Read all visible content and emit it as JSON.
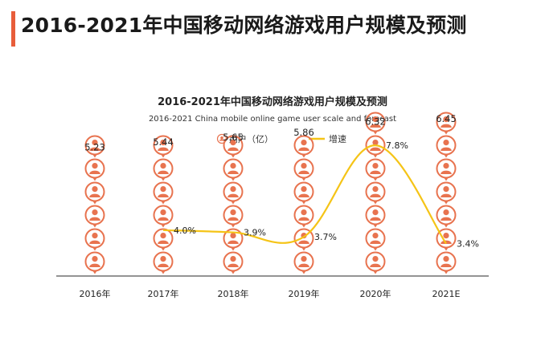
{
  "page": {
    "title": "2016-2021年中国移动网络游戏用户规模及预测"
  },
  "colors": {
    "accent": "#e85d3a",
    "icon": "#e8734f",
    "line": "#f5c417",
    "axis": "#555555"
  },
  "chart_data": {
    "type": "bar",
    "title": "2016-2021年中国移动网络游戏用户规模及预测",
    "subtitle": "2016-2021 China mobile online game user scale and forecast",
    "categories": [
      "2016年",
      "2017年",
      "2018年",
      "2019年",
      "2020年",
      "2021E"
    ],
    "legend": {
      "placement": "top-center",
      "items": [
        "用户（亿）",
        "增速"
      ]
    },
    "series": [
      {
        "name": "用户（亿）",
        "type": "pictograph",
        "icon": "user-avatar-icon",
        "values": [
          5.23,
          5.44,
          5.65,
          5.86,
          6.32,
          6.45
        ],
        "labels": [
          "5.23",
          "5.44",
          "5.65",
          "5.86",
          "6.32",
          "6.45"
        ]
      },
      {
        "name": "增速",
        "type": "line",
        "values": [
          null,
          4.0,
          3.9,
          3.7,
          7.8,
          3.4
        ],
        "labels": [
          "",
          "4.0%",
          "3.9%",
          "3.7%",
          "7.8%",
          "3.4%"
        ]
      }
    ],
    "grid": false
  }
}
